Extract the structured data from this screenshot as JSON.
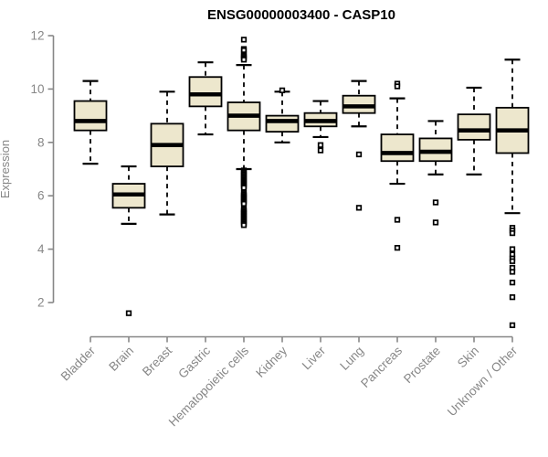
{
  "title": "ENSG00000003400 - CASP10",
  "chart_data": {
    "type": "boxplot",
    "title": "ENSG00000003400 - CASP10",
    "xlabel": "",
    "ylabel": "Expression",
    "ylim": [
      2,
      12
    ],
    "y_ticks": [
      2,
      4,
      6,
      8,
      10,
      12
    ],
    "grid": false,
    "legend": false,
    "axis_color": "#878787",
    "box_fill": "#ede7cd",
    "box_stroke": "#000000",
    "outlier_marker": "open-square",
    "categories": [
      "Bladder",
      "Brain",
      "Breast",
      "Gastric",
      "Hematopoietic cells",
      "Kidney",
      "Liver",
      "Lung",
      "Pancreas",
      "Prostate",
      "Skin",
      "Unknown / Other"
    ],
    "series": [
      {
        "category": "Bladder",
        "whisker_low": 7.2,
        "q1": 8.45,
        "median": 8.8,
        "q3": 9.55,
        "whisker_high": 10.3,
        "outliers": []
      },
      {
        "category": "Brain",
        "whisker_low": 4.95,
        "q1": 5.55,
        "median": 6.05,
        "q3": 6.45,
        "whisker_high": 7.1,
        "outliers": [
          1.6
        ]
      },
      {
        "category": "Breast",
        "whisker_low": 5.3,
        "q1": 7.1,
        "median": 7.9,
        "q3": 8.7,
        "whisker_high": 9.9,
        "outliers": []
      },
      {
        "category": "Gastric",
        "whisker_low": 8.3,
        "q1": 9.35,
        "median": 9.8,
        "q3": 10.45,
        "whisker_high": 11.0,
        "outliers": []
      },
      {
        "category": "Hematopoietic cells",
        "whisker_low": 7.0,
        "q1": 8.45,
        "median": 9.0,
        "q3": 9.5,
        "whisker_high": 10.9,
        "outliers": [
          11.85,
          11.5,
          11.45,
          11.3,
          11.25,
          11.2,
          11.15,
          11.1,
          6.95,
          6.9,
          6.85,
          6.8,
          6.75,
          6.7,
          6.65,
          6.6,
          6.55,
          6.5,
          6.45,
          6.4,
          6.35,
          6.3,
          6.1,
          6.05,
          6.0,
          5.95,
          5.9,
          5.85,
          5.8,
          5.75,
          5.7,
          5.5,
          5.45,
          5.4,
          5.35,
          5.3,
          5.25,
          5.2,
          5.15,
          5.1,
          5.05,
          5.0,
          4.95,
          4.9
        ]
      },
      {
        "category": "Kidney",
        "whisker_low": 8.0,
        "q1": 8.4,
        "median": 8.8,
        "q3": 9.0,
        "whisker_high": 9.9,
        "outliers": [
          9.95
        ]
      },
      {
        "category": "Liver",
        "whisker_low": 8.2,
        "q1": 8.6,
        "median": 8.8,
        "q3": 9.1,
        "whisker_high": 9.55,
        "outliers": [
          7.9,
          7.7
        ]
      },
      {
        "category": "Lung",
        "whisker_low": 8.6,
        "q1": 9.1,
        "median": 9.35,
        "q3": 9.75,
        "whisker_high": 10.3,
        "outliers": [
          7.55,
          5.55
        ]
      },
      {
        "category": "Pancreas",
        "whisker_low": 6.45,
        "q1": 7.3,
        "median": 7.6,
        "q3": 8.3,
        "whisker_high": 9.65,
        "outliers": [
          10.2,
          10.1,
          5.1,
          4.05
        ]
      },
      {
        "category": "Prostate",
        "whisker_low": 6.8,
        "q1": 7.3,
        "median": 7.65,
        "q3": 8.15,
        "whisker_high": 8.8,
        "outliers": [
          5.75,
          5.0
        ]
      },
      {
        "category": "Skin",
        "whisker_low": 6.8,
        "q1": 8.1,
        "median": 8.45,
        "q3": 9.05,
        "whisker_high": 10.05,
        "outliers": []
      },
      {
        "category": "Unknown / Other",
        "whisker_low": 5.35,
        "q1": 7.6,
        "median": 8.45,
        "q3": 9.3,
        "whisker_high": 11.1,
        "outliers": [
          4.8,
          4.7,
          4.6,
          4.0,
          3.8,
          3.65,
          3.55,
          3.3,
          3.15,
          2.75,
          2.2,
          1.15
        ]
      }
    ]
  }
}
